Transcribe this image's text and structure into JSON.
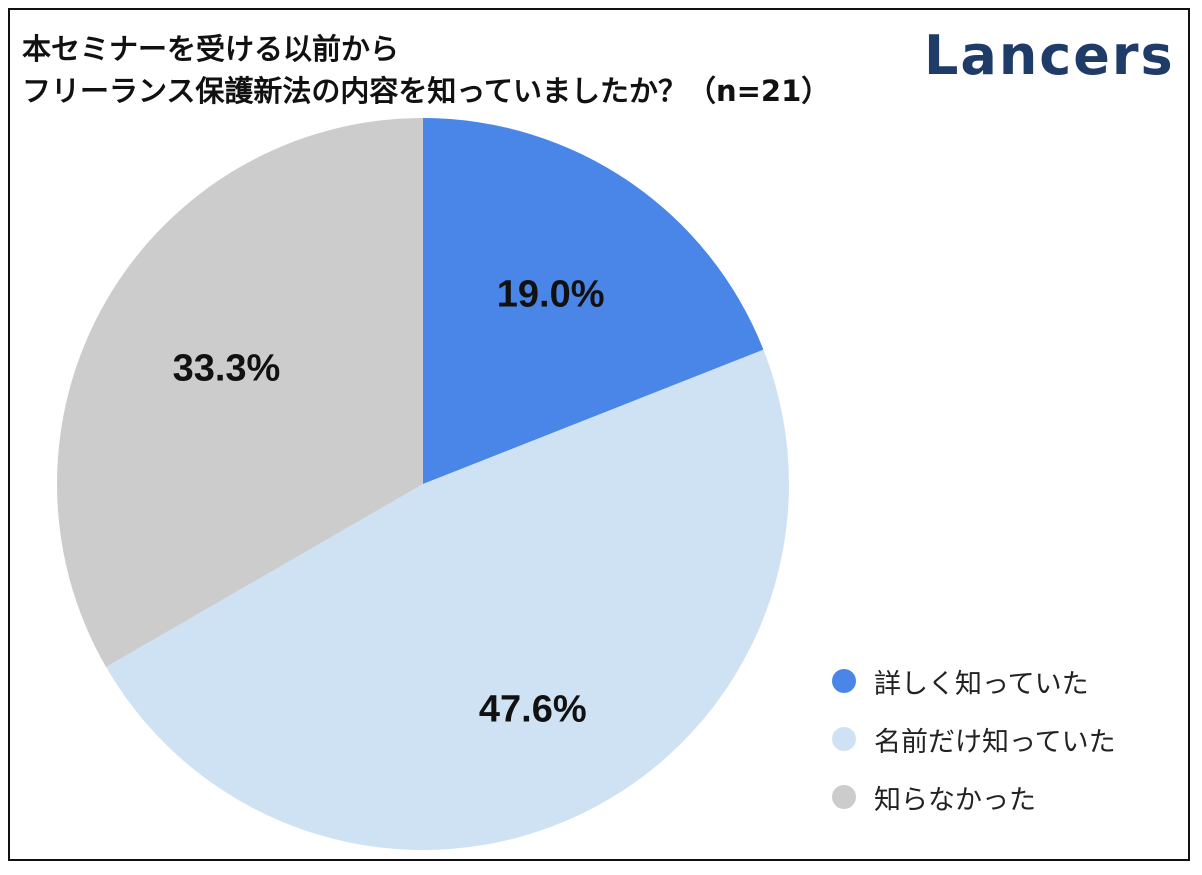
{
  "header": {
    "title_line1": "本セミナーを受ける以前から",
    "title_line2": "フリーランス保護新法の内容を知っていましたか？（n=21）",
    "logo": "Lancers"
  },
  "chart_data": {
    "type": "pie",
    "title": "本セミナーを受ける以前から フリーランス保護新法の内容を知っていましたか？（n=21）",
    "slices": [
      {
        "label": "詳しく知っていた",
        "value": 19.0,
        "value_label": "19.0%",
        "color": "#4a86e8"
      },
      {
        "label": "名前だけ知っていた",
        "value": 47.6,
        "value_label": "47.6%",
        "color": "#cfe2f3"
      },
      {
        "label": "知らなかった",
        "value": 33.3,
        "value_label": "33.3%",
        "color": "#cccccc"
      }
    ],
    "start_angle": "12 o'clock",
    "direction": "clockwise",
    "legend_position": "bottom-right"
  }
}
